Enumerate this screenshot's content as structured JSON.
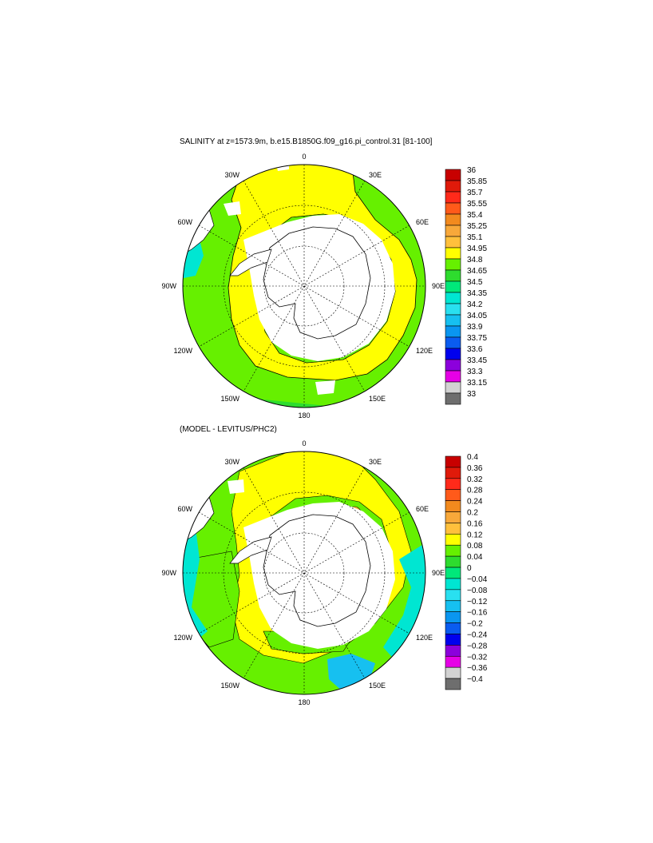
{
  "panels": [
    {
      "id": "salinity",
      "title": "SALINITY at z=1573.9m, b.e15.B1850G.f09_g16.pi_control.31 [81-100]",
      "lon_labels": [
        "0",
        "30E",
        "60E",
        "90E",
        "120E",
        "150E",
        "180",
        "150W",
        "120W",
        "90W",
        "60W",
        "30W"
      ],
      "colorbar": {
        "labels": [
          "36",
          "35.85",
          "35.7",
          "35.55",
          "35.4",
          "35.25",
          "35.1",
          "34.95",
          "34.8",
          "34.65",
          "34.5",
          "34.35",
          "34.2",
          "34.05",
          "33.9",
          "33.75",
          "33.6",
          "33.45",
          "33.3",
          "33.15",
          "33"
        ],
        "colors": [
          "#c80000",
          "#e01a0a",
          "#ff2a1a",
          "#ff5a1a",
          "#f28a1e",
          "#f8a83a",
          "#ffc03c",
          "#ffff00",
          "#66f000",
          "#2edc2e",
          "#00e87a",
          "#00e6d2",
          "#29e0f0",
          "#16c0f0",
          "#0a96f0",
          "#0a5cf0",
          "#0000ee",
          "#8c00dc",
          "#e600e6",
          "#d2d2d2",
          "#6e6e6e"
        ]
      }
    },
    {
      "id": "difference",
      "title": "(MODEL - LEVITUS/PHC2)",
      "lon_labels": [
        "0",
        "30E",
        "60E",
        "90E",
        "120E",
        "150E",
        "180",
        "150W",
        "120W",
        "90W",
        "60W",
        "30W"
      ],
      "colorbar": {
        "labels": [
          "0.4",
          "0.36",
          "0.32",
          "0.28",
          "0.24",
          "0.2",
          "0.16",
          "0.12",
          "0.08",
          "0.04",
          "0",
          "−0.04",
          "−0.08",
          "−0.12",
          "−0.16",
          "−0.2",
          "−0.24",
          "−0.28",
          "−0.32",
          "−0.36",
          "−0.4"
        ],
        "colors": [
          "#c80000",
          "#e01a0a",
          "#ff2a1a",
          "#ff5a1a",
          "#f28a1e",
          "#f8a83a",
          "#ffc03c",
          "#ffff00",
          "#66f000",
          "#2edc2e",
          "#00e87a",
          "#00e6d2",
          "#29e0f0",
          "#16c0f0",
          "#0a96f0",
          "#0a5cf0",
          "#0000ee",
          "#8c00dc",
          "#e600e6",
          "#d2d2d2",
          "#6e6e6e"
        ]
      }
    }
  ]
}
